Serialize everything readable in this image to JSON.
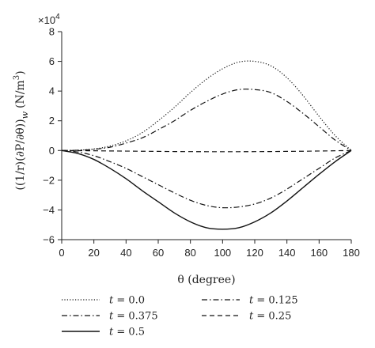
{
  "chart_data": {
    "type": "line",
    "multiplier": "×10",
    "multiplier_exp": "4",
    "xlabel": "θ (degree)",
    "ylabel_main": "((1/r)(∂P/∂θ))",
    "ylabel_sub": "w",
    "ylabel_unit_prefix": "(N/m",
    "ylabel_unit_exp": "3",
    "ylabel_unit_suffix": ")",
    "xlim": [
      0,
      180
    ],
    "ylim": [
      -6,
      8
    ],
    "x_ticks": [
      0,
      20,
      40,
      60,
      80,
      100,
      120,
      140,
      160,
      180
    ],
    "y_ticks": [
      8,
      6,
      4,
      2,
      0,
      -2,
      -4,
      -6
    ],
    "y_tick_labels": [
      "8",
      "6",
      "4",
      "2",
      "0",
      "−2",
      "−4",
      "−6"
    ],
    "grid": false,
    "legend_position": "bottom",
    "x": [
      0,
      10,
      20,
      30,
      40,
      50,
      60,
      70,
      80,
      90,
      100,
      110,
      120,
      130,
      140,
      150,
      160,
      170,
      180
    ],
    "series": [
      {
        "name": "t = 0.0",
        "style": "dotted",
        "values": [
          0,
          0.02,
          0.1,
          0.3,
          0.65,
          1.2,
          2.0,
          2.9,
          3.9,
          4.8,
          5.5,
          5.95,
          6.0,
          5.7,
          4.9,
          3.7,
          2.3,
          1.0,
          0
        ]
      },
      {
        "name": "t = 0.125",
        "style": "dashdot",
        "values": [
          0,
          0.015,
          0.08,
          0.22,
          0.5,
          0.85,
          1.4,
          2.0,
          2.7,
          3.3,
          3.8,
          4.1,
          4.1,
          3.9,
          3.3,
          2.5,
          1.6,
          0.7,
          0
        ]
      },
      {
        "name": "t = 0.375",
        "style": "dashdot",
        "values": [
          0,
          -0.1,
          -0.35,
          -0.75,
          -1.2,
          -1.75,
          -2.3,
          -2.85,
          -3.35,
          -3.7,
          -3.85,
          -3.8,
          -3.6,
          -3.2,
          -2.6,
          -1.9,
          -1.2,
          -0.5,
          0
        ]
      },
      {
        "name": "t = 0.25",
        "style": "dashed",
        "values": [
          0,
          -0.01,
          -0.02,
          -0.03,
          -0.04,
          -0.05,
          -0.06,
          -0.07,
          -0.075,
          -0.08,
          -0.08,
          -0.08,
          -0.075,
          -0.07,
          -0.06,
          -0.05,
          -0.035,
          -0.02,
          0
        ]
      },
      {
        "name": "t = 0.5",
        "style": "solid",
        "values": [
          0,
          -0.2,
          -0.6,
          -1.2,
          -1.9,
          -2.7,
          -3.45,
          -4.2,
          -4.8,
          -5.2,
          -5.3,
          -5.2,
          -4.8,
          -4.2,
          -3.4,
          -2.5,
          -1.6,
          -0.75,
          0
        ]
      }
    ]
  }
}
